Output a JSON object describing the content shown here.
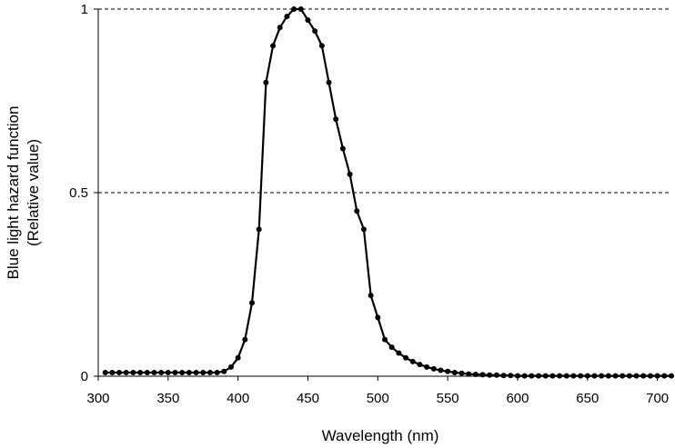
{
  "chart_data": {
    "type": "line",
    "title": "",
    "xlabel": "Wavelength (nm)",
    "ylabel_line1": "Blue light hazard function",
    "ylabel_line2": "(Relative value)",
    "xlim": [
      300,
      710
    ],
    "ylim": [
      0,
      1
    ],
    "x_ticks": [
      300,
      350,
      400,
      450,
      500,
      550,
      600,
      650,
      700
    ],
    "x_tick_labels": [
      "300",
      "350",
      "400",
      "450",
      "500",
      "550",
      "600",
      "650",
      "700"
    ],
    "y_ticks": [
      0,
      0.5,
      1
    ],
    "y_tick_labels": [
      "0",
      "0.5",
      "1"
    ],
    "gridlines": "horizontal dashed at 0.5 and 1",
    "legend": "none",
    "colors": {
      "line": "#000000",
      "marker": "#000000",
      "grid": "#000000"
    },
    "series": [
      {
        "name": "Blue light hazard function",
        "x": [
          305,
          310,
          315,
          320,
          325,
          330,
          335,
          340,
          345,
          350,
          355,
          360,
          365,
          370,
          375,
          380,
          385,
          390,
          395,
          400,
          405,
          410,
          415,
          420,
          425,
          430,
          435,
          440,
          445,
          450,
          455,
          460,
          465,
          470,
          475,
          480,
          485,
          490,
          495,
          500,
          505,
          510,
          515,
          520,
          525,
          530,
          535,
          540,
          545,
          550,
          555,
          560,
          565,
          570,
          575,
          580,
          585,
          590,
          595,
          600,
          605,
          610,
          615,
          620,
          625,
          630,
          635,
          640,
          645,
          650,
          655,
          660,
          665,
          670,
          675,
          680,
          685,
          690,
          695,
          700,
          705,
          710
        ],
        "values": [
          0.01,
          0.01,
          0.01,
          0.01,
          0.01,
          0.01,
          0.01,
          0.01,
          0.01,
          0.01,
          0.01,
          0.01,
          0.01,
          0.01,
          0.01,
          0.01,
          0.01,
          0.013,
          0.025,
          0.05,
          0.1,
          0.2,
          0.4,
          0.8,
          0.9,
          0.95,
          0.98,
          1.0,
          1.0,
          0.97,
          0.94,
          0.9,
          0.8,
          0.7,
          0.62,
          0.55,
          0.45,
          0.4,
          0.22,
          0.16,
          0.1,
          0.079,
          0.063,
          0.05,
          0.04,
          0.032,
          0.025,
          0.02,
          0.016,
          0.013,
          0.01,
          0.008,
          0.006,
          0.005,
          0.004,
          0.003,
          0.003,
          0.002,
          0.002,
          0.001,
          0.001,
          0.001,
          0.001,
          0.001,
          0.001,
          0.001,
          0.001,
          0.001,
          0.001,
          0.001,
          0.001,
          0.001,
          0.001,
          0.001,
          0.001,
          0.001,
          0.001,
          0.001,
          0.001,
          0.001,
          0.001,
          0.001
        ]
      }
    ]
  }
}
